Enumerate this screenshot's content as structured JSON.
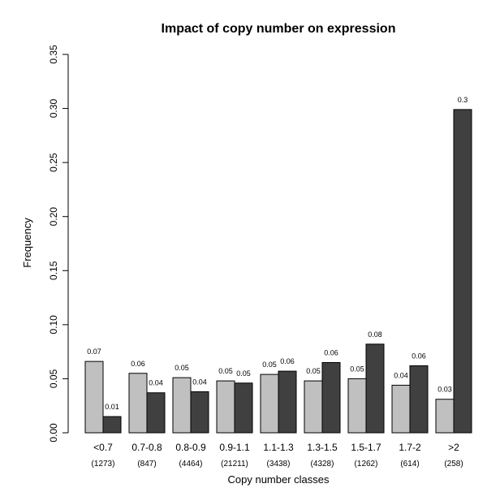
{
  "chart_data": {
    "type": "bar",
    "title": "Impact of copy number on expression",
    "xlabel": "Copy number classes",
    "ylabel": "Frequency",
    "ylim": [
      0,
      0.35
    ],
    "yticks": [
      "0.00",
      "0.05",
      "0.10",
      "0.15",
      "0.20",
      "0.25",
      "0.30",
      "0.35"
    ],
    "categories": [
      "<0.7",
      "0.7-0.8",
      "0.8-0.9",
      "0.9-1.1",
      "1.1-1.3",
      "1.3-1.5",
      "1.5-1.7",
      "1.7-2",
      ">2"
    ],
    "counts": [
      "(1273)",
      "(847)",
      "(4464)",
      "(21211)",
      "(3438)",
      "(4328)",
      "(1262)",
      "(614)",
      "(258)"
    ],
    "series": [
      {
        "color": "#c0c0c0",
        "values": [
          0.066,
          0.055,
          0.051,
          0.048,
          0.054,
          0.048,
          0.05,
          0.044,
          0.031
        ],
        "labels": [
          "0.07",
          "0.06",
          "0.05",
          "0.05",
          "0.05",
          "0.05",
          "0.05",
          "0.04",
          "0.03"
        ]
      },
      {
        "color": "#404040",
        "values": [
          0.015,
          0.037,
          0.038,
          0.046,
          0.057,
          0.065,
          0.082,
          0.062,
          0.299
        ],
        "labels": [
          "0.01",
          "0.04",
          "0.04",
          "0.05",
          "0.06",
          "0.06",
          "0.08",
          "0.06",
          "0.3"
        ]
      }
    ],
    "grid": false,
    "legend": "none"
  }
}
